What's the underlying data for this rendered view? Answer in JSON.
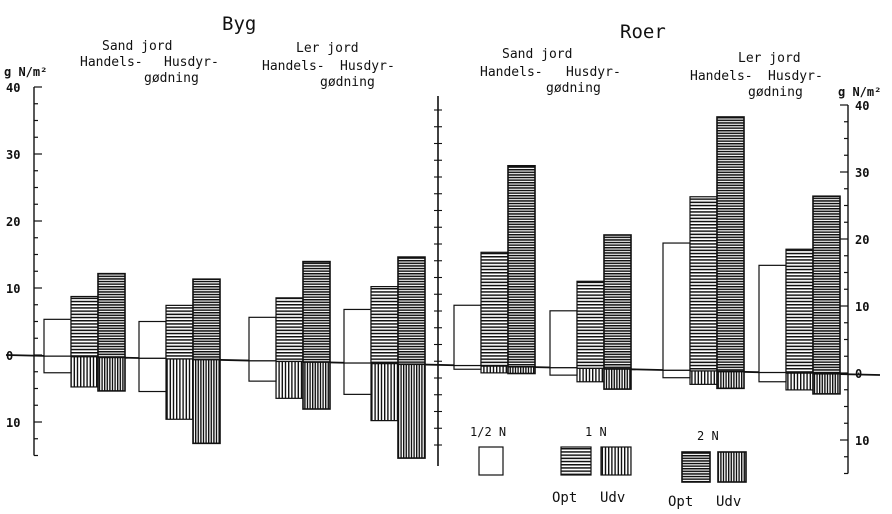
{
  "chart_data": {
    "type": "bar",
    "ylim_left": [
      -15,
      40
    ],
    "ylim_right": [
      -15,
      40
    ],
    "panels": [
      {
        "title": "Byg",
        "groups": [
          {
            "soil": "Sand jord",
            "fertilizer": "Handels-",
            "half_n": 5.5,
            "one_n_opt": 9,
            "one_n_udv": -4.5,
            "two_n_opt": 12.5,
            "two_n_udv": -5
          },
          {
            "soil": "",
            "fertilizer": "Husdyr- gødning",
            "half_n": 5.5,
            "one_n_opt": 8,
            "one_n_udv": -9,
            "two_n_opt": 12,
            "two_n_udv": -12.5
          },
          {
            "soil": "Ler jord",
            "fertilizer": "Handels-",
            "half_n": 6.5,
            "one_n_opt": 9.5,
            "one_n_udv": -5.5,
            "two_n_opt": 15,
            "two_n_udv": -7
          },
          {
            "soil": "",
            "fertilizer": "Husdyr- gødning",
            "half_n": 8,
            "one_n_opt": 11.5,
            "one_n_udv": -8.5,
            "two_n_opt": 16,
            "two_n_udv": -14
          }
        ]
      },
      {
        "title": "Roer",
        "groups": [
          {
            "soil": "Sand jord",
            "fertilizer": "Handels-",
            "half_n": 9,
            "one_n_opt": 17,
            "one_n_udv": -1,
            "two_n_opt": 30,
            "two_n_udv": -1
          },
          {
            "soil": "",
            "fertilizer": "Husdyr- gødning",
            "half_n": 8.5,
            "one_n_opt": 13,
            "one_n_udv": -2,
            "two_n_opt": 20,
            "two_n_udv": -3
          },
          {
            "soil": "Ler jord",
            "fertilizer": "Handels-",
            "half_n": 19,
            "one_n_opt": 26,
            "one_n_udv": -2,
            "two_n_opt": 38,
            "two_n_udv": -2.5
          },
          {
            "soil": "",
            "fertilizer": "Husdyr- gødning",
            "half_n": 16,
            "one_n_opt": 18.5,
            "one_n_udv": -2.5,
            "two_n_opt": 26.5,
            "two_n_udv": -3
          }
        ]
      }
    ],
    "left_axis": {
      "unit": "g N/m²",
      "ticks": [
        {
          "label": "40",
          "value": 40
        },
        {
          "label": "30",
          "value": 30
        },
        {
          "label": "20",
          "value": 20
        },
        {
          "label": "10",
          "value": 10
        },
        {
          "label": "0",
          "value": 0
        },
        {
          "label": "10",
          "value": -10
        }
      ]
    },
    "right_axis": {
      "unit": "g N/m²",
      "ticks": [
        {
          "label": "40",
          "value": 40
        },
        {
          "label": "30",
          "value": 30
        },
        {
          "label": "20",
          "value": 20
        },
        {
          "label": "10",
          "value": 10
        },
        {
          "label": "0",
          "value": 0
        },
        {
          "label": "10",
          "value": -10
        }
      ]
    },
    "legend": {
      "half_n": "1/2 N",
      "one_n": "1 N",
      "two_n": "2 N",
      "opt": "Opt",
      "udv": "Udv"
    }
  }
}
